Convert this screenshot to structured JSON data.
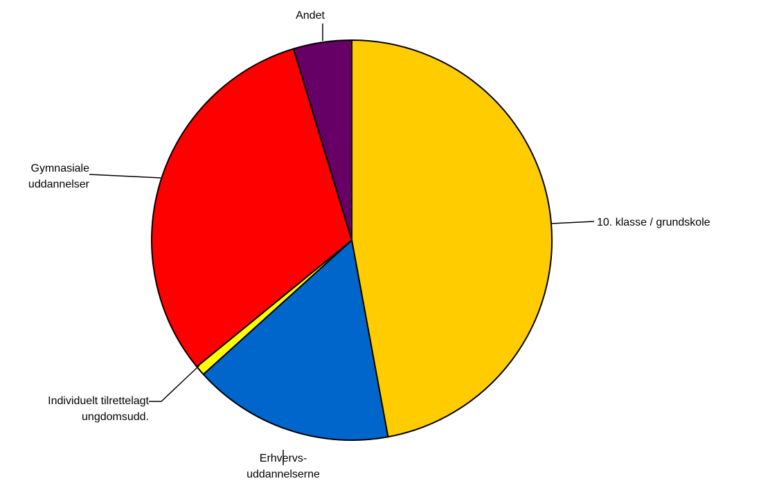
{
  "chart_data": {
    "type": "pie",
    "title": "",
    "categories": [
      "10. klasse / grundskole",
      "Erhvervs-uddannelserne",
      "Individuelt tilrettelagt ungdomsudd.",
      "Gymnasiale uddannelser",
      "Andet"
    ],
    "values": [
      47.1,
      16.2,
      0.8,
      31.2,
      4.7
    ],
    "unit": "%",
    "colors": [
      "#FFCC00",
      "#0066CC",
      "#FFFF00",
      "#FF0000",
      "#660066"
    ],
    "start_angle_deg": 0,
    "direction": "clockwise",
    "legend": "none",
    "labels": [
      [
        "10. klasse / grundskole"
      ],
      [
        "Erhvervs-",
        "uddannelserne"
      ],
      [
        "Individuelt tilrettelagt",
        "ungdomsudd."
      ],
      [
        "Gymnasiale",
        "uddannelser"
      ],
      [
        "Andet"
      ]
    ]
  }
}
